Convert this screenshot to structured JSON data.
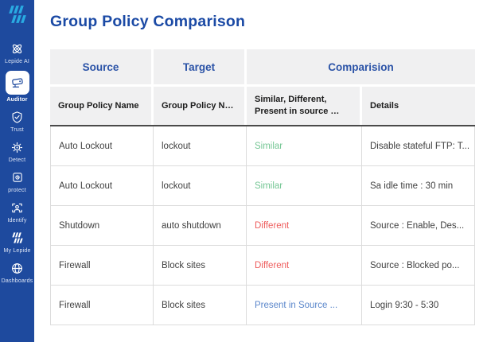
{
  "sidebar": {
    "items": [
      {
        "label": "Lepide AI",
        "icon": "atom-icon",
        "active": false
      },
      {
        "label": "Auditor",
        "icon": "camera-icon",
        "active": true
      },
      {
        "label": "Trust",
        "icon": "shield-check-icon",
        "active": false
      },
      {
        "label": "Detect",
        "icon": "gear-icon",
        "active": false
      },
      {
        "label": "protect",
        "icon": "vault-icon",
        "active": false
      },
      {
        "label": "Identify",
        "icon": "person-scan-icon",
        "active": false
      },
      {
        "label": "My Lepide",
        "icon": "lepide-mark-icon",
        "active": false
      },
      {
        "label": "Dashboards",
        "icon": "globe-icon",
        "active": false
      }
    ]
  },
  "main": {
    "title": "Group Policy Comparison",
    "table": {
      "group_headers": [
        {
          "label": "Source",
          "span": 1
        },
        {
          "label": "Target",
          "span": 1
        },
        {
          "label": "Comparision",
          "span": 2
        }
      ],
      "columns": [
        "Group Policy Name",
        "Group Policy N…",
        "Similar, Different, Present in source …",
        "Details"
      ],
      "rows": [
        {
          "source": "Auto Lockout",
          "target": "lockout",
          "comparison": "Similar",
          "status": "similar",
          "details": "Disable stateful FTP: T..."
        },
        {
          "source": "Auto Lockout",
          "target": "lockout",
          "comparison": "Similar",
          "status": "similar",
          "details": "Sa idle time : 30 min"
        },
        {
          "source": "Shutdown",
          "target": "auto shutdown",
          "comparison": "Different",
          "status": "different",
          "details": "Source : Enable, Des..."
        },
        {
          "source": "Firewall",
          "target": "Block sites",
          "comparison": "Different",
          "status": "different",
          "details": "Source : Blocked po..."
        },
        {
          "source": "Firewall",
          "target": "Block sites",
          "comparison": "Present in Source ...",
          "status": "present",
          "details": "Login 9:30 - 5:30"
        }
      ]
    }
  },
  "colors": {
    "sidebar_bg": "#1e4a9e",
    "logo_blue": "#29abe2",
    "title_blue": "#1b4aa5",
    "header_text_blue": "#2b53a7",
    "header_bg": "#f0f0f1",
    "similar_green": "#74c694",
    "different_red": "#ee5c5c",
    "present_blue": "#5b87cb"
  }
}
